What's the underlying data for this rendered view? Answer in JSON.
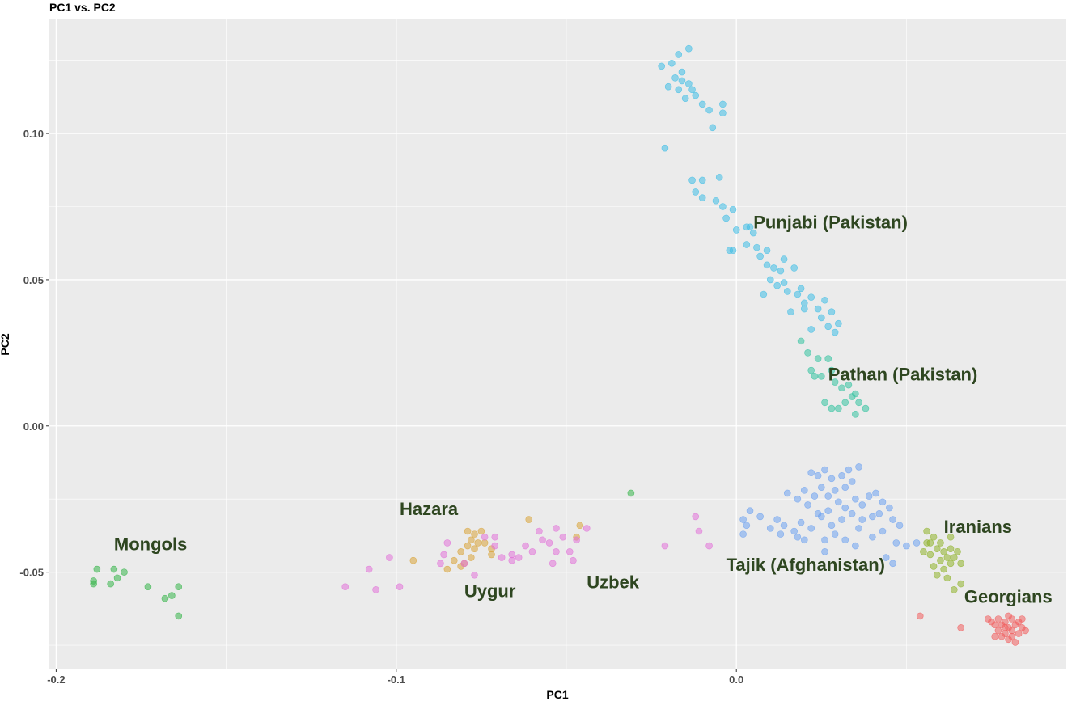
{
  "chart_data": {
    "type": "scatter",
    "title": "PC1 vs. PC2",
    "xlabel": "PC1",
    "ylabel": "PC2",
    "xlim": [
      -0.202,
      0.097
    ],
    "ylim": [
      -0.083,
      0.139
    ],
    "x_ticks": [
      {
        "value": -0.2,
        "label": "-0.2"
      },
      {
        "value": -0.1,
        "label": "-0.1"
      },
      {
        "value": 0.0,
        "label": "0.0"
      }
    ],
    "y_ticks": [
      {
        "value": 0.1,
        "label": "0.10"
      },
      {
        "value": 0.05,
        "label": "0.05"
      },
      {
        "value": 0.0,
        "label": "0.00"
      },
      {
        "value": -0.05,
        "label": "-0.05"
      }
    ],
    "grid": true,
    "background": "#ebebeb",
    "series": [
      {
        "name": "Punjabi (Pakistan)",
        "color": "#3fbde6",
        "label_pos": [
          0.005,
          0.0675
        ],
        "points": [
          [
            -0.019,
            0.124
          ],
          [
            -0.017,
            0.127
          ],
          [
            -0.014,
            0.129
          ],
          [
            -0.016,
            0.121
          ],
          [
            -0.018,
            0.119
          ],
          [
            -0.016,
            0.118
          ],
          [
            -0.014,
            0.117
          ],
          [
            -0.013,
            0.115
          ],
          [
            -0.015,
            0.112
          ],
          [
            -0.017,
            0.115
          ],
          [
            -0.02,
            0.116
          ],
          [
            -0.012,
            0.113
          ],
          [
            -0.01,
            0.11
          ],
          [
            -0.008,
            0.108
          ],
          [
            -0.004,
            0.11
          ],
          [
            -0.004,
            0.107
          ],
          [
            -0.007,
            0.102
          ],
          [
            -0.022,
            0.123
          ],
          [
            -0.021,
            0.095
          ],
          [
            -0.013,
            0.084
          ],
          [
            -0.01,
            0.084
          ],
          [
            -0.005,
            0.085
          ],
          [
            -0.012,
            0.08
          ],
          [
            -0.01,
            0.078
          ],
          [
            -0.006,
            0.077
          ],
          [
            -0.004,
            0.075
          ],
          [
            -0.001,
            0.074
          ],
          [
            -0.003,
            0.071
          ],
          [
            0.0,
            0.067
          ],
          [
            0.003,
            0.068
          ],
          [
            0.005,
            0.066
          ],
          [
            -0.002,
            0.06
          ],
          [
            0.003,
            0.062
          ],
          [
            0.006,
            0.061
          ],
          [
            0.007,
            0.058
          ],
          [
            0.009,
            0.055
          ],
          [
            0.011,
            0.054
          ],
          [
            0.013,
            0.053
          ],
          [
            0.01,
            0.05
          ],
          [
            0.012,
            0.048
          ],
          [
            0.014,
            0.049
          ],
          [
            0.017,
            0.054
          ],
          [
            0.015,
            0.046
          ],
          [
            0.018,
            0.045
          ],
          [
            0.02,
            0.042
          ],
          [
            0.022,
            0.044
          ],
          [
            0.024,
            0.04
          ],
          [
            0.026,
            0.043
          ],
          [
            0.028,
            0.039
          ],
          [
            0.025,
            0.037
          ],
          [
            0.027,
            0.034
          ],
          [
            0.029,
            0.032
          ],
          [
            0.03,
            0.035
          ],
          [
            0.02,
            0.04
          ],
          [
            0.019,
            0.047
          ],
          [
            0.008,
            0.045
          ],
          [
            0.016,
            0.039
          ],
          [
            0.022,
            0.033
          ],
          [
            0.014,
            0.057
          ],
          [
            0.009,
            0.06
          ],
          [
            0.004,
            0.068
          ],
          [
            -0.001,
            0.06
          ]
        ]
      },
      {
        "name": "Pathan (Pakistan)",
        "color": "#34c3a0",
        "label_pos": [
          0.027,
          0.0155
        ],
        "points": [
          [
            0.019,
            0.029
          ],
          [
            0.021,
            0.025
          ],
          [
            0.024,
            0.023
          ],
          [
            0.027,
            0.023
          ],
          [
            0.028,
            0.019
          ],
          [
            0.025,
            0.017
          ],
          [
            0.029,
            0.015
          ],
          [
            0.031,
            0.013
          ],
          [
            0.033,
            0.014
          ],
          [
            0.035,
            0.011
          ],
          [
            0.032,
            0.008
          ],
          [
            0.03,
            0.006
          ],
          [
            0.028,
            0.006
          ],
          [
            0.026,
            0.008
          ],
          [
            0.023,
            0.017
          ],
          [
            0.035,
            0.004
          ],
          [
            0.038,
            0.006
          ],
          [
            0.036,
            0.008
          ],
          [
            0.034,
            0.01
          ],
          [
            0.022,
            0.019
          ]
        ]
      },
      {
        "name": "Tajik (Afghanistan)",
        "color": "#6ea2f0",
        "label_pos": [
          -0.003,
          -0.0495
        ],
        "points": [
          [
            0.022,
            -0.016
          ],
          [
            0.024,
            -0.017
          ],
          [
            0.026,
            -0.015
          ],
          [
            0.028,
            -0.018
          ],
          [
            0.031,
            -0.017
          ],
          [
            0.033,
            -0.015
          ],
          [
            0.034,
            -0.019
          ],
          [
            0.032,
            -0.021
          ],
          [
            0.029,
            -0.022
          ],
          [
            0.027,
            -0.024
          ],
          [
            0.025,
            -0.021
          ],
          [
            0.023,
            -0.024
          ],
          [
            0.02,
            -0.022
          ],
          [
            0.018,
            -0.025
          ],
          [
            0.015,
            -0.023
          ],
          [
            0.021,
            -0.027
          ],
          [
            0.024,
            -0.03
          ],
          [
            0.027,
            -0.029
          ],
          [
            0.03,
            -0.026
          ],
          [
            0.032,
            -0.028
          ],
          [
            0.035,
            -0.025
          ],
          [
            0.037,
            -0.027
          ],
          [
            0.039,
            -0.024
          ],
          [
            0.041,
            -0.023
          ],
          [
            0.043,
            -0.026
          ],
          [
            0.045,
            -0.028
          ],
          [
            0.042,
            -0.03
          ],
          [
            0.04,
            -0.031
          ],
          [
            0.037,
            -0.032
          ],
          [
            0.034,
            -0.03
          ],
          [
            0.031,
            -0.032
          ],
          [
            0.028,
            -0.034
          ],
          [
            0.025,
            -0.031
          ],
          [
            0.022,
            -0.035
          ],
          [
            0.019,
            -0.033
          ],
          [
            0.017,
            -0.036
          ],
          [
            0.014,
            -0.034
          ],
          [
            0.012,
            -0.032
          ],
          [
            0.01,
            -0.035
          ],
          [
            0.007,
            -0.031
          ],
          [
            0.004,
            -0.029
          ],
          [
            0.002,
            -0.032
          ],
          [
            0.003,
            -0.034
          ],
          [
            0.046,
            -0.032
          ],
          [
            0.048,
            -0.034
          ],
          [
            0.043,
            -0.036
          ],
          [
            0.04,
            -0.038
          ],
          [
            0.036,
            -0.035
          ],
          [
            0.029,
            -0.037
          ],
          [
            0.026,
            -0.039
          ],
          [
            0.018,
            -0.038
          ],
          [
            0.013,
            -0.037
          ],
          [
            0.047,
            -0.04
          ],
          [
            0.05,
            -0.041
          ],
          [
            0.053,
            -0.04
          ],
          [
            0.044,
            -0.045
          ],
          [
            0.046,
            -0.047
          ],
          [
            0.035,
            -0.041
          ],
          [
            0.032,
            -0.039
          ],
          [
            0.036,
            -0.014
          ],
          [
            0.026,
            -0.043
          ],
          [
            0.002,
            -0.037
          ],
          [
            0.02,
            -0.039
          ]
        ]
      },
      {
        "name": "Iranians",
        "color": "#8fb32a",
        "label_pos": [
          0.061,
          -0.0365
        ],
        "points": [
          [
            0.056,
            -0.036
          ],
          [
            0.058,
            -0.038
          ],
          [
            0.06,
            -0.04
          ],
          [
            0.057,
            -0.04
          ],
          [
            0.059,
            -0.042
          ],
          [
            0.061,
            -0.043
          ],
          [
            0.063,
            -0.042
          ],
          [
            0.065,
            -0.043
          ],
          [
            0.062,
            -0.045
          ],
          [
            0.06,
            -0.046
          ],
          [
            0.058,
            -0.048
          ],
          [
            0.061,
            -0.049
          ],
          [
            0.063,
            -0.047
          ],
          [
            0.059,
            -0.051
          ],
          [
            0.062,
            -0.052
          ],
          [
            0.066,
            -0.047
          ],
          [
            0.066,
            -0.054
          ],
          [
            0.064,
            -0.056
          ],
          [
            0.063,
            -0.038
          ],
          [
            0.056,
            -0.04
          ],
          [
            0.057,
            -0.044
          ],
          [
            0.064,
            -0.045
          ],
          [
            0.055,
            -0.043
          ]
        ]
      },
      {
        "name": "Georgians",
        "color": "#f15e5e",
        "label_pos": [
          0.067,
          -0.0605
        ],
        "points": [
          [
            0.075,
            -0.067
          ],
          [
            0.077,
            -0.066
          ],
          [
            0.079,
            -0.067
          ],
          [
            0.081,
            -0.066
          ],
          [
            0.083,
            -0.067
          ],
          [
            0.078,
            -0.068
          ],
          [
            0.08,
            -0.069
          ],
          [
            0.082,
            -0.068
          ],
          [
            0.084,
            -0.069
          ],
          [
            0.079,
            -0.071
          ],
          [
            0.081,
            -0.072
          ],
          [
            0.083,
            -0.071
          ],
          [
            0.077,
            -0.07
          ],
          [
            0.076,
            -0.068
          ],
          [
            0.085,
            -0.07
          ],
          [
            0.082,
            -0.074
          ],
          [
            0.08,
            -0.073
          ],
          [
            0.078,
            -0.072
          ],
          [
            0.074,
            -0.066
          ],
          [
            0.084,
            -0.066
          ],
          [
            0.08,
            -0.065
          ],
          [
            0.076,
            -0.072
          ],
          [
            0.054,
            -0.065
          ],
          [
            0.066,
            -0.069
          ],
          [
            0.081,
            -0.07
          ],
          [
            0.079,
            -0.069
          ]
        ]
      },
      {
        "name": "Mongols",
        "color": "#36b54a",
        "label_pos": [
          -0.183,
          -0.0425
        ],
        "points": [
          [
            -0.188,
            -0.049
          ],
          [
            -0.189,
            -0.053
          ],
          [
            -0.189,
            -0.054
          ],
          [
            -0.184,
            -0.054
          ],
          [
            -0.183,
            -0.049
          ],
          [
            -0.182,
            -0.052
          ],
          [
            -0.18,
            -0.05
          ],
          [
            -0.173,
            -0.055
          ],
          [
            -0.168,
            -0.059
          ],
          [
            -0.166,
            -0.058
          ],
          [
            -0.164,
            -0.055
          ],
          [
            -0.164,
            -0.065
          ],
          [
            -0.031,
            -0.023
          ]
        ]
      },
      {
        "name": "Hazara",
        "color": "#d9a43a",
        "label_pos": [
          -0.099,
          -0.0305
        ],
        "points": [
          [
            -0.079,
            -0.036
          ],
          [
            -0.077,
            -0.037
          ],
          [
            -0.075,
            -0.036
          ],
          [
            -0.078,
            -0.039
          ],
          [
            -0.076,
            -0.04
          ],
          [
            -0.079,
            -0.041
          ],
          [
            -0.081,
            -0.043
          ],
          [
            -0.083,
            -0.046
          ],
          [
            -0.08,
            -0.047
          ],
          [
            -0.078,
            -0.045
          ],
          [
            -0.085,
            -0.049
          ],
          [
            -0.081,
            -0.048
          ],
          [
            -0.072,
            -0.042
          ],
          [
            -0.072,
            -0.044
          ],
          [
            -0.095,
            -0.046
          ],
          [
            -0.061,
            -0.032
          ],
          [
            -0.046,
            -0.034
          ],
          [
            -0.047,
            -0.038
          ],
          [
            -0.077,
            -0.042
          ],
          [
            -0.074,
            -0.04
          ]
        ]
      },
      {
        "name": "Uygur",
        "color": "#e273d8",
        "label_pos": [
          -0.08,
          -0.0585
        ],
        "points": [
          [
            -0.115,
            -0.055
          ],
          [
            -0.108,
            -0.049
          ],
          [
            -0.106,
            -0.056
          ],
          [
            -0.102,
            -0.045
          ],
          [
            -0.099,
            -0.055
          ],
          [
            -0.087,
            -0.047
          ],
          [
            -0.085,
            -0.04
          ],
          [
            -0.08,
            -0.047
          ],
          [
            -0.077,
            -0.051
          ],
          [
            -0.074,
            -0.038
          ],
          [
            -0.071,
            -0.041
          ],
          [
            -0.069,
            -0.045
          ],
          [
            -0.066,
            -0.046
          ],
          [
            -0.064,
            -0.045
          ],
          [
            -0.062,
            -0.041
          ],
          [
            -0.06,
            -0.043
          ],
          [
            -0.058,
            -0.036
          ],
          [
            -0.055,
            -0.04
          ],
          [
            -0.053,
            -0.043
          ],
          [
            -0.051,
            -0.038
          ],
          [
            -0.049,
            -0.043
          ],
          [
            -0.047,
            -0.039
          ],
          [
            -0.044,
            -0.035
          ],
          [
            -0.054,
            -0.047
          ],
          [
            -0.048,
            -0.046
          ],
          [
            -0.057,
            -0.039
          ],
          [
            -0.066,
            -0.044
          ],
          [
            -0.071,
            -0.038
          ],
          [
            -0.053,
            -0.035
          ],
          [
            -0.021,
            -0.041
          ],
          [
            -0.012,
            -0.031
          ],
          [
            -0.008,
            -0.041
          ],
          [
            -0.011,
            -0.036
          ],
          [
            -0.086,
            -0.044
          ]
        ]
      }
    ],
    "annotations": [
      {
        "text": "Uzbek",
        "pos": [
          -0.044,
          -0.0555
        ]
      }
    ]
  }
}
